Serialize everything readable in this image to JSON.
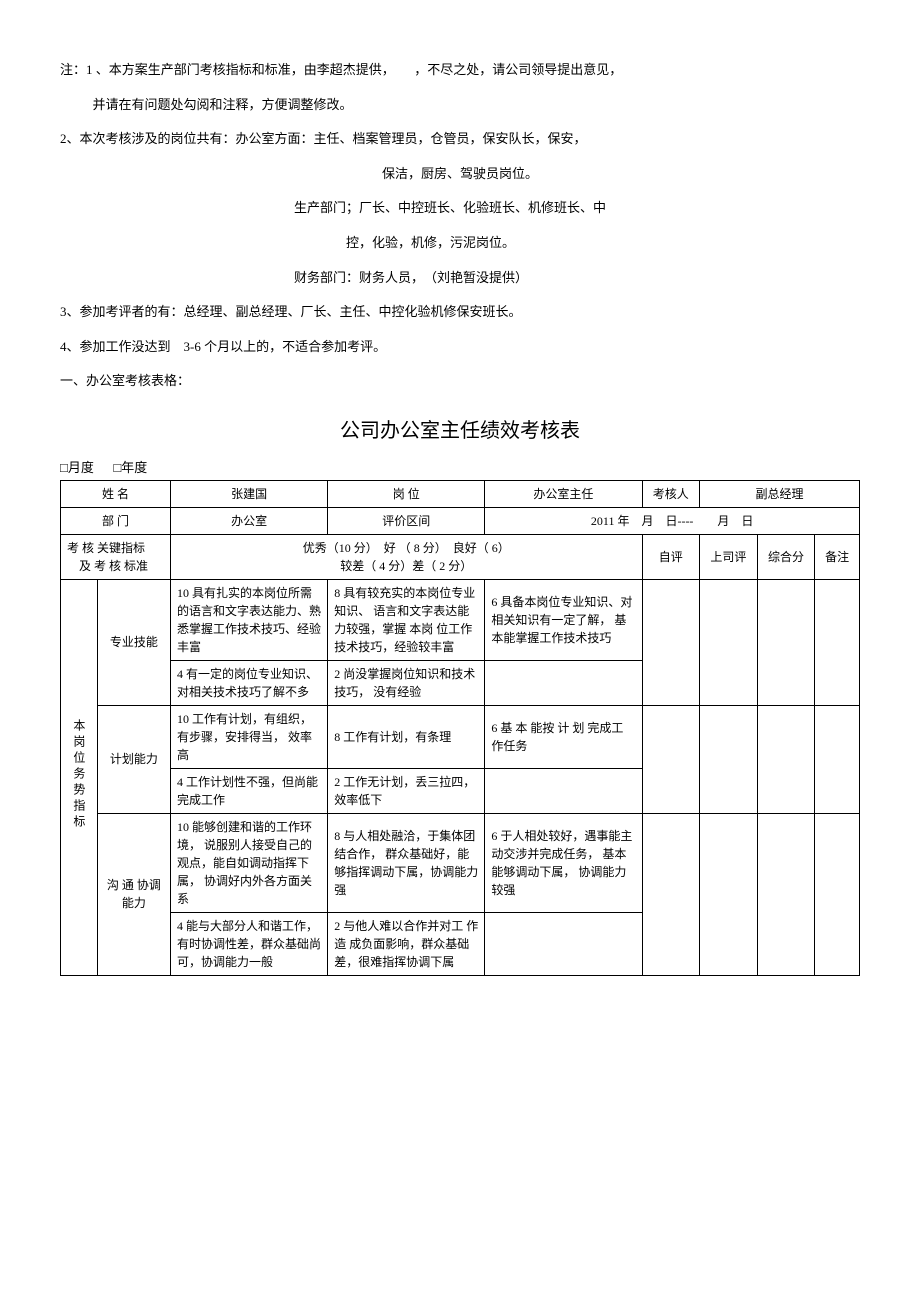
{
  "notes": {
    "n1": "注：1 、本方案生产部门考核指标和标准，由李超杰提供，　　，不尽之处，请公司领导提出意见，",
    "n1b": "并请在有问题处勾阅和注释，方便调整修改。",
    "n2": "2、本次考核涉及的岗位共有：办公室方面：主任、档案管理员，仓管员，保安队长，保安，",
    "n2b": "保洁，厨房、驾驶员岗位。",
    "n2c": "生产部门；厂长、中控班长、化验班长、机修班长、中",
    "n2d": "控，化验，机修，污泥岗位。",
    "n2e": "财务部门：财务人员，　（刘艳暂没提供）",
    "n3": "3、参加考评者的有：总经理、副总经理、厂长、主任、中控化验机修保安班长。",
    "n4": "4、参加工作没达到　3-6 个月以上的，不适合参加考评。",
    "section": "一、办公室考核表格："
  },
  "title": "公司办公室主任绩效考核表",
  "period": {
    "month": "□月度",
    "year": "□年度"
  },
  "header": {
    "name_lbl": "姓 名",
    "name_val": "张建国",
    "post_lbl": "岗 位",
    "post_val": "办公室主任",
    "assr_lbl": "考核人",
    "assr_val": "副总经理",
    "dept_lbl": "部 门",
    "dept_val": "办公室",
    "span_lbl": "评价区间",
    "span_val": "2011 年　月　日----　　月　日"
  },
  "cols": {
    "criteria": "考 核 关键指标\n　及 考 核 标准",
    "scale": "优秀（10 分）　好 （ 8 分）　良好（ 6）\n较差（ 4 分）差（ 2 分）",
    "self": "自评",
    "boss": "上司评",
    "total": "综合分",
    "note": "备注"
  },
  "grp": {
    "main": "本岗位务势指标",
    "r1": {
      "name": "专业技能",
      "c10": "10 具有扎实的本岗位所需的语言和文字表达能力、熟悉掌握工作技术技巧、经验丰富",
      "c8": "8 具有较充实的本岗位专业知识、 语言和文字表达能力较强，掌握 本岗 位工作技术技巧，经验较丰富",
      "c6": "6 具备本岗位专业知识、对相关知识有一定了解， 基本能掌握工作技术技巧",
      "c4": "4 有一定的岗位专业知识、对相关技术技巧了解不多",
      "c2": "2 尚没掌握岗位知识和技术技巧， 没有经验"
    },
    "r2": {
      "name": "计划能力",
      "c10": "10 工作有计划，有组织，有步骤，安排得当， 效率高",
      "c8": "8 工作有计划，有条理",
      "c6": "6 基 本 能按 计 划 完成工 作任务",
      "c4": "4 工作计划性不强，但尚能完成工作",
      "c2": "2 工作无计划，丢三拉四，效率低下"
    },
    "r3": {
      "name": "沟 通 协调能力",
      "c10": "10 能够创建和谐的工作环境， 说服别人接受自己的观点，能自如调动指挥下属， 协调好内外各方面关系",
      "c8": "8 与人相处融洽，于集体团结合作， 群众基础好，能够指挥调动下属，协调能力强",
      "c6": "6 于人相处较好，遇事能主动交涉并完成任务， 基本能够调动下属， 协调能力较强",
      "c4": "4 能与大部分人和谐工作，有时协调性差，群众基础尚可，协调能力一般",
      "c2": "2 与他人难以合作并对工 作造 成负面影响，群众基础差，很难指挥协调下属"
    }
  }
}
